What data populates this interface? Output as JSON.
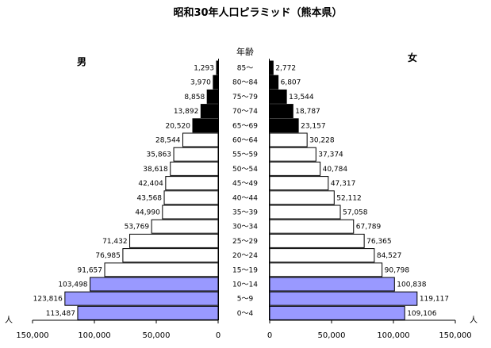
{
  "chart_data": {
    "type": "bar",
    "title": "昭和30年人口ピラミッド（熊本県）",
    "age_header": "年齢",
    "left_label": "男",
    "right_label": "女",
    "axis_unit": "人",
    "xlim": [
      0,
      150000
    ],
    "left_ticks": [
      "150,000",
      "100,000",
      "50,000",
      "0"
    ],
    "right_ticks": [
      "0",
      "50,000",
      "100,000",
      "150,000"
    ],
    "tick_values": [
      150000,
      100000,
      50000,
      0
    ],
    "categories": [
      "85～",
      "80～84",
      "75～79",
      "70～74",
      "65～69",
      "60～64",
      "55～59",
      "50～54",
      "45～49",
      "40～44",
      "35～39",
      "30～34",
      "25～29",
      "20～24",
      "15～19",
      "10～14",
      "5～9",
      "0～4"
    ],
    "series": [
      {
        "name": "男",
        "values": [
          1293,
          3970,
          8858,
          13892,
          20520,
          28544,
          35863,
          38618,
          42404,
          43568,
          44990,
          53769,
          71432,
          76985,
          91657,
          103498,
          123816,
          113487
        ],
        "labels": [
          "1,293",
          "3,970",
          "8,858",
          "13,892",
          "20,520",
          "28,544",
          "35,863",
          "38,618",
          "42,404",
          "43,568",
          "44,990",
          "53,769",
          "71,432",
          "76,985",
          "91,657",
          "103,498",
          "123,816",
          "113,487"
        ]
      },
      {
        "name": "女",
        "values": [
          2772,
          6807,
          13544,
          18787,
          23157,
          30228,
          37374,
          40784,
          47317,
          52112,
          57058,
          67789,
          76365,
          84527,
          90798,
          100838,
          119117,
          109106
        ],
        "labels": [
          "2,772",
          "6,807",
          "13,544",
          "18,787",
          "23,157",
          "30,228",
          "37,374",
          "40,784",
          "47,317",
          "52,112",
          "57,058",
          "67,789",
          "76,365",
          "84,527",
          "90,798",
          "100,838",
          "119,117",
          "109,106"
        ]
      }
    ],
    "group_colors": {
      "elderly": "#000000",
      "working": "#ffffff",
      "young": "#9999ff"
    },
    "groups": [
      "elderly",
      "elderly",
      "elderly",
      "elderly",
      "elderly",
      "working",
      "working",
      "working",
      "working",
      "working",
      "working",
      "working",
      "working",
      "working",
      "working",
      "young",
      "young",
      "young"
    ]
  }
}
